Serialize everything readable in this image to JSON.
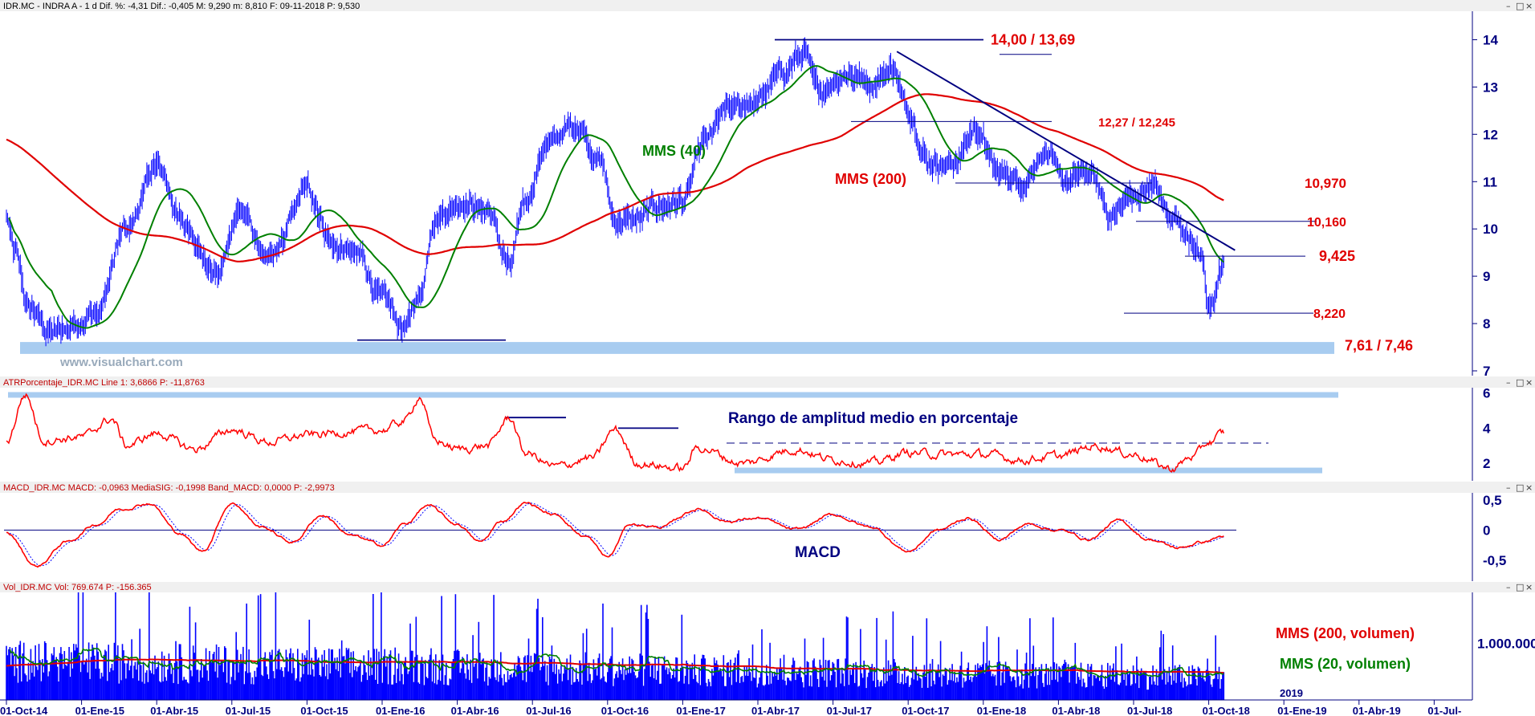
{
  "colors": {
    "price": "#0000ff",
    "sma40": "#008000",
    "sma200": "#e00000",
    "atr": "#ff0000",
    "macd": "#ff0000",
    "signal": "#0000ff",
    "volume": "#0000ff",
    "vol_sma200": "#e00000",
    "vol_sma20": "#008000",
    "axis_text": "#000080",
    "support_band": "#a8ccf0",
    "level_label": "#e00000",
    "trend_line": "#000080"
  },
  "headers": {
    "price": "IDR.MC - INDRA A - 1 d  Dif. %: -4,31  Dif.: -0,405  M: 9,290  m: 8,810  F: 09-11-2018  P: 9,530",
    "atr": "ATRPorcentaje_IDR.MC  Line 1: 3,6866  P: -11,8763",
    "macd": "MACD_IDR.MC  MACD: -0,0963  MediaSIG: -0,1998  Band_MACD: 0,0000  P: -2,9973",
    "vol": "Vol_IDR.MC  Vol: 769.674  P: -156.365"
  },
  "window_buttons": [
    "–",
    "□",
    "×"
  ],
  "watermark": "www.visualchart.com",
  "chart_data": [
    {
      "type": "candlestick",
      "panel": "price",
      "symbol": "IDR.MC",
      "ylim": [
        7,
        14.5
      ],
      "yticks": [
        "14",
        "13",
        "12",
        "11",
        "10",
        "9",
        "8",
        "7"
      ],
      "x_date_labels": [
        "01-Oct-14",
        "01-Ene-15",
        "01-Abr-15",
        "01-Jul-15",
        "01-Oct-15",
        "01-Ene-16",
        "01-Abr-16",
        "01-Jul-16",
        "01-Oct-16",
        "01-Ene-17",
        "01-Abr-17",
        "01-Jul-17",
        "01-Oct-17",
        "01-Ene-18",
        "01-Abr-18",
        "01-Jul-18",
        "01-Oct-18",
        "01-Ene-19",
        "01-Abr-19",
        "01-Jul-"
      ],
      "year_marker": "2019",
      "close_anchors": [
        {
          "t": 0.0,
          "v": 10.3
        },
        {
          "t": 0.1,
          "v": 9.5
        },
        {
          "t": 0.3,
          "v": 8.3
        },
        {
          "t": 0.6,
          "v": 7.8
        },
        {
          "t": 1.2,
          "v": 8.2
        },
        {
          "t": 1.6,
          "v": 10.0
        },
        {
          "t": 2.0,
          "v": 11.3
        },
        {
          "t": 2.4,
          "v": 10.0
        },
        {
          "t": 2.8,
          "v": 9.0
        },
        {
          "t": 3.1,
          "v": 10.4
        },
        {
          "t": 3.5,
          "v": 9.3
        },
        {
          "t": 4.0,
          "v": 10.8
        },
        {
          "t": 4.4,
          "v": 9.6
        },
        {
          "t": 4.7,
          "v": 9.4
        },
        {
          "t": 5.0,
          "v": 8.5
        },
        {
          "t": 5.3,
          "v": 7.9
        },
        {
          "t": 5.5,
          "v": 8.6
        },
        {
          "t": 5.7,
          "v": 10.3
        },
        {
          "t": 6.1,
          "v": 10.6
        },
        {
          "t": 6.4,
          "v": 10.4
        },
        {
          "t": 6.7,
          "v": 9.2
        },
        {
          "t": 6.9,
          "v": 10.6
        },
        {
          "t": 7.2,
          "v": 11.8
        },
        {
          "t": 7.6,
          "v": 12.2
        },
        {
          "t": 7.9,
          "v": 11.5
        },
        {
          "t": 8.1,
          "v": 10.2
        },
        {
          "t": 8.4,
          "v": 10.2
        },
        {
          "t": 8.7,
          "v": 10.5
        },
        {
          "t": 9.0,
          "v": 10.6
        },
        {
          "t": 9.3,
          "v": 11.8
        },
        {
          "t": 9.6,
          "v": 12.5
        },
        {
          "t": 10.0,
          "v": 12.7
        },
        {
          "t": 10.3,
          "v": 13.3
        },
        {
          "t": 10.6,
          "v": 13.7
        },
        {
          "t": 10.8,
          "v": 12.9
        },
        {
          "t": 11.2,
          "v": 13.3
        },
        {
          "t": 11.5,
          "v": 13.1
        },
        {
          "t": 11.8,
          "v": 13.4
        },
        {
          "t": 12.0,
          "v": 12.5
        },
        {
          "t": 12.3,
          "v": 11.4
        },
        {
          "t": 12.6,
          "v": 11.4
        },
        {
          "t": 12.9,
          "v": 12.1
        },
        {
          "t": 13.2,
          "v": 11.2
        },
        {
          "t": 13.5,
          "v": 11.0
        },
        {
          "t": 13.8,
          "v": 11.6
        },
        {
          "t": 14.1,
          "v": 11.0
        },
        {
          "t": 14.4,
          "v": 11.2
        },
        {
          "t": 14.7,
          "v": 10.3
        },
        {
          "t": 15.0,
          "v": 10.7
        },
        {
          "t": 15.3,
          "v": 10.9
        },
        {
          "t": 15.5,
          "v": 10.2
        },
        {
          "t": 15.7,
          "v": 9.9
        },
        {
          "t": 15.9,
          "v": 9.4
        },
        {
          "t": 16.0,
          "v": 8.3
        },
        {
          "t": 16.2,
          "v": 9.3
        }
      ],
      "annotations": [
        {
          "label": "14,00 / 13,69",
          "level": 14.0
        },
        {
          "label": "12,27 / 12,245",
          "level": 12.27
        },
        {
          "label": "10,970",
          "level": 10.97
        },
        {
          "label": "10,160",
          "level": 10.16
        },
        {
          "label": "9,425",
          "level": 9.425
        },
        {
          "label": "8,220",
          "level": 8.22
        },
        {
          "label": "7,61 / 7,46",
          "level": 7.535
        }
      ],
      "support_band": [
        7.46,
        7.61
      ],
      "indicators": [
        {
          "label": "MMS (40)",
          "period": 40
        },
        {
          "label": "MMS (200)",
          "period": 200
        }
      ]
    },
    {
      "type": "line",
      "panel": "atr",
      "ylim": [
        1,
        6.3
      ],
      "yticks": [
        "6",
        "4",
        "2"
      ],
      "anchors": [
        {
          "t": 0.0,
          "v": 3.2
        },
        {
          "t": 0.25,
          "v": 5.9
        },
        {
          "t": 0.5,
          "v": 3.3
        },
        {
          "t": 1.0,
          "v": 3.5
        },
        {
          "t": 1.4,
          "v": 4.5
        },
        {
          "t": 1.6,
          "v": 3.0
        },
        {
          "t": 2.0,
          "v": 3.7
        },
        {
          "t": 2.5,
          "v": 2.8
        },
        {
          "t": 3.0,
          "v": 3.9
        },
        {
          "t": 3.5,
          "v": 3.2
        },
        {
          "t": 4.0,
          "v": 3.6
        },
        {
          "t": 4.6,
          "v": 3.8
        },
        {
          "t": 5.0,
          "v": 3.9
        },
        {
          "t": 5.3,
          "v": 4.4
        },
        {
          "t": 5.5,
          "v": 5.8
        },
        {
          "t": 5.7,
          "v": 3.3
        },
        {
          "t": 6.0,
          "v": 2.8
        },
        {
          "t": 6.4,
          "v": 3.0
        },
        {
          "t": 6.7,
          "v": 4.6
        },
        {
          "t": 6.9,
          "v": 2.6
        },
        {
          "t": 7.3,
          "v": 1.8
        },
        {
          "t": 7.8,
          "v": 2.3
        },
        {
          "t": 8.1,
          "v": 3.9
        },
        {
          "t": 8.4,
          "v": 2.0
        },
        {
          "t": 9.0,
          "v": 1.7
        },
        {
          "t": 9.2,
          "v": 2.9
        },
        {
          "t": 9.8,
          "v": 2.0
        },
        {
          "t": 10.5,
          "v": 2.8
        },
        {
          "t": 11.0,
          "v": 2.2
        },
        {
          "t": 11.5,
          "v": 2.0
        },
        {
          "t": 12.0,
          "v": 2.6
        },
        {
          "t": 12.5,
          "v": 2.5
        },
        {
          "t": 13.0,
          "v": 2.5
        },
        {
          "t": 13.5,
          "v": 2.2
        },
        {
          "t": 14.0,
          "v": 2.4
        },
        {
          "t": 14.5,
          "v": 3.0
        },
        {
          "t": 15.0,
          "v": 2.5
        },
        {
          "t": 15.5,
          "v": 1.7
        },
        {
          "t": 15.8,
          "v": 2.4
        },
        {
          "t": 16.0,
          "v": 3.2
        },
        {
          "t": 16.2,
          "v": 3.7
        }
      ],
      "annotation": "Rango de amplitud medio en porcentaje"
    },
    {
      "type": "line",
      "panel": "macd",
      "ylim": [
        -0.85,
        0.62
      ],
      "yticks": [
        "0,5",
        "0",
        "-0,5"
      ],
      "series": [
        {
          "name": "MACD",
          "anchors": [
            {
              "t": 0.0,
              "v": -0.05
            },
            {
              "t": 0.4,
              "v": -0.6
            },
            {
              "t": 0.8,
              "v": -0.2
            },
            {
              "t": 1.2,
              "v": 0.1
            },
            {
              "t": 1.5,
              "v": 0.35
            },
            {
              "t": 1.9,
              "v": 0.45
            },
            {
              "t": 2.3,
              "v": -0.05
            },
            {
              "t": 2.6,
              "v": -0.35
            },
            {
              "t": 3.0,
              "v": 0.45
            },
            {
              "t": 3.4,
              "v": 0.05
            },
            {
              "t": 3.8,
              "v": -0.2
            },
            {
              "t": 4.2,
              "v": 0.25
            },
            {
              "t": 4.6,
              "v": -0.1
            },
            {
              "t": 5.0,
              "v": -0.25
            },
            {
              "t": 5.3,
              "v": 0.1
            },
            {
              "t": 5.6,
              "v": 0.4
            },
            {
              "t": 6.0,
              "v": 0.1
            },
            {
              "t": 6.3,
              "v": -0.2
            },
            {
              "t": 6.6,
              "v": 0.15
            },
            {
              "t": 6.9,
              "v": 0.45
            },
            {
              "t": 7.3,
              "v": 0.25
            },
            {
              "t": 7.7,
              "v": -0.1
            },
            {
              "t": 8.0,
              "v": -0.45
            },
            {
              "t": 8.3,
              "v": 0.1
            },
            {
              "t": 8.7,
              "v": 0.05
            },
            {
              "t": 9.2,
              "v": 0.35
            },
            {
              "t": 9.6,
              "v": 0.15
            },
            {
              "t": 10.0,
              "v": 0.2
            },
            {
              "t": 10.5,
              "v": 0.0
            },
            {
              "t": 11.0,
              "v": 0.25
            },
            {
              "t": 11.5,
              "v": 0.05
            },
            {
              "t": 12.0,
              "v": -0.35
            },
            {
              "t": 12.4,
              "v": 0.0
            },
            {
              "t": 12.8,
              "v": 0.2
            },
            {
              "t": 13.2,
              "v": -0.15
            },
            {
              "t": 13.6,
              "v": 0.1
            },
            {
              "t": 14.0,
              "v": 0.0
            },
            {
              "t": 14.4,
              "v": -0.15
            },
            {
              "t": 14.8,
              "v": 0.15
            },
            {
              "t": 15.2,
              "v": -0.15
            },
            {
              "t": 15.6,
              "v": -0.3
            },
            {
              "t": 15.9,
              "v": -0.2
            },
            {
              "t": 16.2,
              "v": -0.1
            }
          ]
        },
        {
          "name": "MediaSIG",
          "lag": 2
        }
      ],
      "annotation": "MACD"
    },
    {
      "type": "bar",
      "panel": "volume",
      "ylim": [
        0,
        1900000
      ],
      "yticks": [
        "1.000.000"
      ],
      "indicators": [
        {
          "label": "MMS (200, volumen)",
          "period": 200
        },
        {
          "label": "MMS (20, volumen)",
          "period": 20
        }
      ]
    }
  ]
}
